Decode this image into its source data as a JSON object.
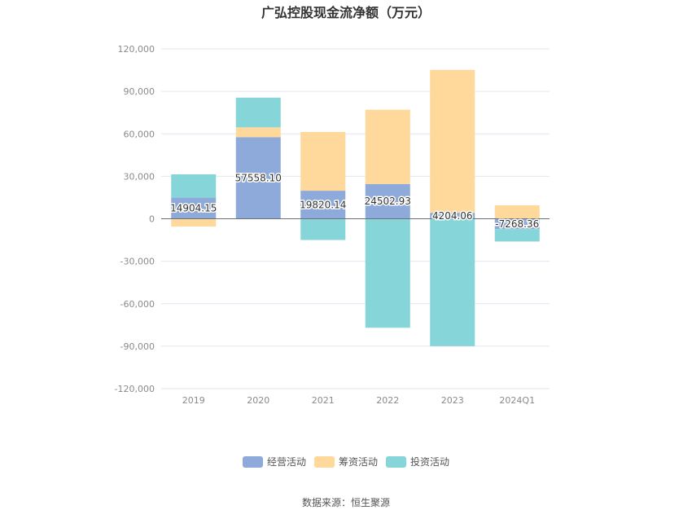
{
  "chart_data": {
    "type": "bar",
    "stacked": true,
    "title": "广弘控股现金流净额（万元）",
    "xlabel": "",
    "ylabel": "",
    "categories": [
      "2019",
      "2020",
      "2021",
      "2022",
      "2023",
      "2024Q1"
    ],
    "ylim": [
      -120000,
      120000
    ],
    "yticks": [
      120000,
      90000,
      60000,
      30000,
      0,
      -30000,
      -60000,
      -90000,
      -120000
    ],
    "ytick_labels": [
      "120,000",
      "90,000",
      "60,000",
      "30,000",
      "0",
      "-30,000",
      "-60,000",
      "-90,000",
      "-120,000"
    ],
    "grid": true,
    "legend_position": "bottom",
    "series": [
      {
        "name": "经营活动",
        "color": "#8eaadb",
        "values": [
          14904.15,
          57558.1,
          19820.14,
          24502.93,
          4204.06,
          -7268.36
        ],
        "data_labels": [
          "14904.15",
          "57558.10",
          "19820.14",
          "24502.93",
          "4204.06",
          "-7268.36"
        ]
      },
      {
        "name": "筹资活动",
        "color": "#ffd89c",
        "values": [
          -5500,
          7000,
          41500,
          52500,
          101000,
          9500
        ]
      },
      {
        "name": "投资活动",
        "color": "#86d5d9",
        "values": [
          16500,
          21000,
          -15000,
          -77000,
          -90000,
          -8800
        ]
      }
    ],
    "source": "数据来源：恒生聚源"
  }
}
